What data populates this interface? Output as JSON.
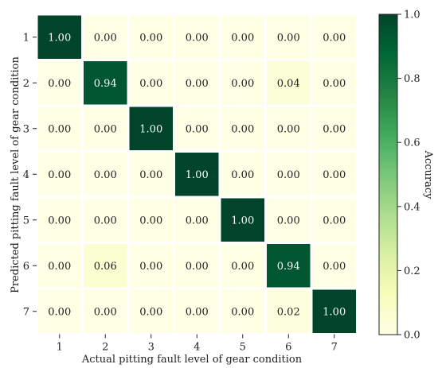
{
  "chart_data": {
    "type": "heatmap",
    "xlabel": "Actual pitting fault level of gear condition",
    "ylabel": "Predicted pitting fault level of gear condition",
    "x_categories": [
      "1",
      "2",
      "3",
      "4",
      "5",
      "6",
      "7"
    ],
    "y_categories": [
      "1",
      "2",
      "3",
      "4",
      "5",
      "6",
      "7"
    ],
    "values": [
      [
        1.0,
        0.0,
        0.0,
        0.0,
        0.0,
        0.0,
        0.0
      ],
      [
        0.0,
        0.94,
        0.0,
        0.0,
        0.0,
        0.04,
        0.0
      ],
      [
        0.0,
        0.0,
        1.0,
        0.0,
        0.0,
        0.0,
        0.0
      ],
      [
        0.0,
        0.0,
        0.0,
        1.0,
        0.0,
        0.0,
        0.0
      ],
      [
        0.0,
        0.0,
        0.0,
        0.0,
        1.0,
        0.0,
        0.0
      ],
      [
        0.0,
        0.06,
        0.0,
        0.0,
        0.0,
        0.94,
        0.0
      ],
      [
        0.0,
        0.0,
        0.0,
        0.0,
        0.0,
        0.02,
        1.0
      ]
    ],
    "colorbar": {
      "label": "Accuracy",
      "range": [
        0.0,
        1.0
      ],
      "ticks": [
        "0.0",
        "0.2",
        "0.4",
        "0.6",
        "0.8",
        "1.0"
      ],
      "colormap": "YlGn"
    },
    "colors": {
      "low": "#ffffe5",
      "high": "#004529"
    }
  }
}
